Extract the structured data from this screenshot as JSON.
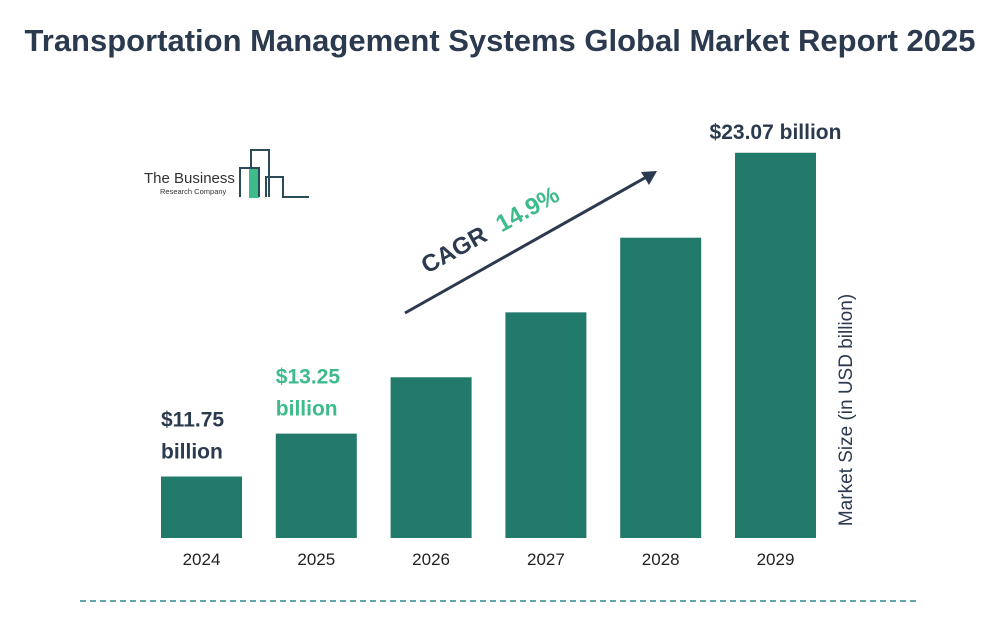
{
  "chart_data": {
    "type": "bar",
    "title": "Transportation Management Systems Global Market Report 2025",
    "categories": [
      "2024",
      "2025",
      "2026",
      "2027",
      "2028",
      "2029"
    ],
    "values": [
      11.75,
      13.25,
      15.22,
      17.49,
      20.1,
      23.07
    ],
    "data_labels": [
      {
        "category": "2024",
        "line1": "$11.75",
        "line2": "billion",
        "color": "#2b3a4e"
      },
      {
        "category": "2025",
        "line1": "$13.25",
        "line2": "billion",
        "color": "#3dbb8a"
      },
      {
        "category": "2029",
        "line1": "$23.07 billion",
        "line2": "",
        "color": "#2b3a4e"
      }
    ],
    "ylabel": "Market Size (in USD billion)",
    "xlabel": "",
    "grid": false,
    "annotation": {
      "prefix": "CAGR",
      "value": "14.9%",
      "prefix_color": "#2b3a4e",
      "value_color": "#3dbb8a"
    },
    "colors": {
      "bar": "#217a6a",
      "text": "#2b3a4e",
      "accent": "#3dbb8a",
      "divider": "#2e8a8f"
    }
  },
  "logo": {
    "line1": "The Business",
    "line2": "Research Company"
  }
}
